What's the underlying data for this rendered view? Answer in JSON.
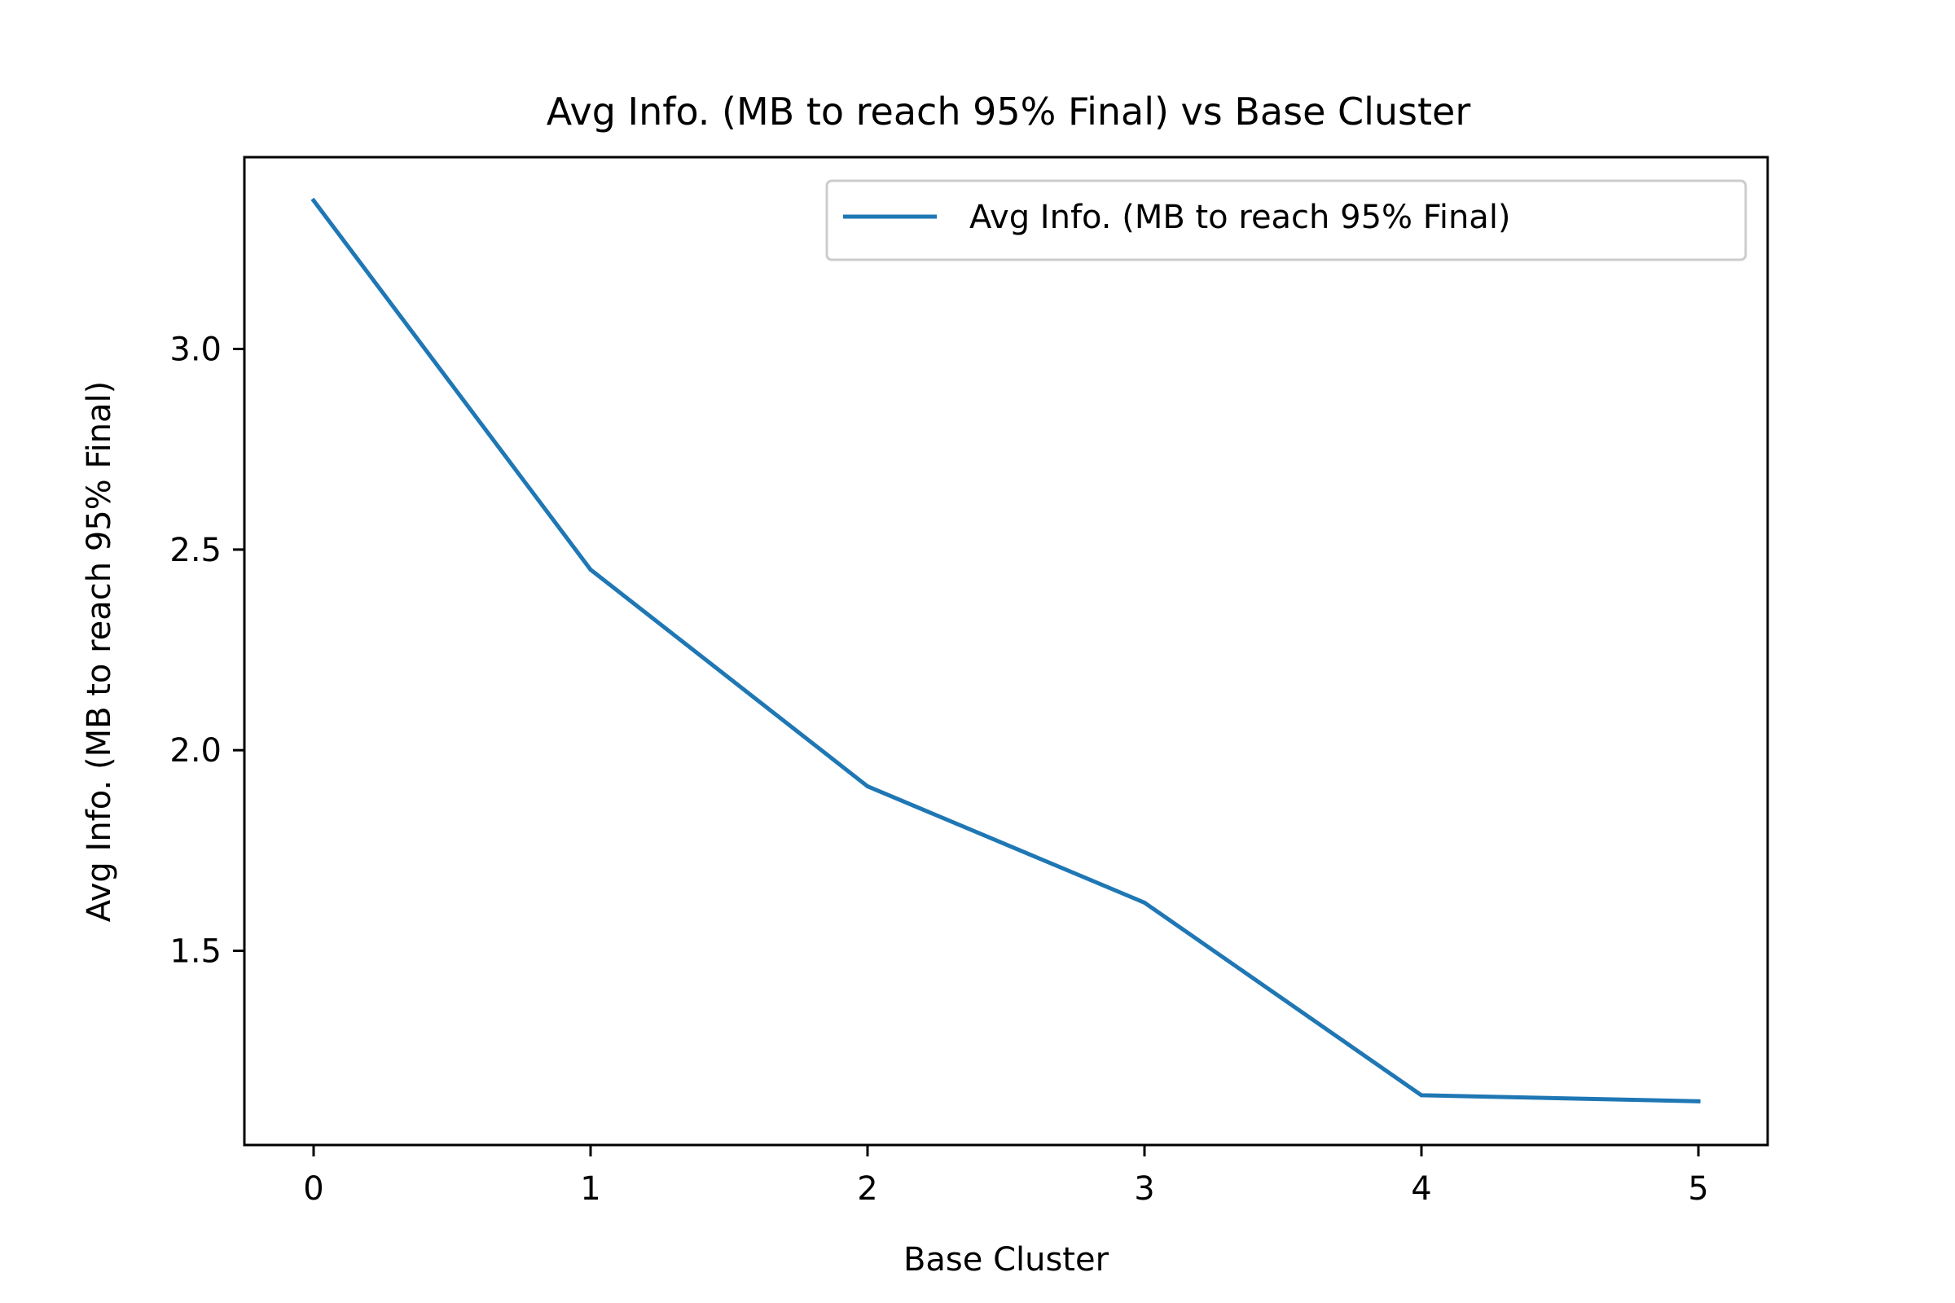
{
  "chart_data": {
    "type": "line",
    "title": "Avg Info. (MB to reach 95% Final) vs Base Cluster",
    "xlabel": "Base Cluster",
    "ylabel": "Avg Info. (MB to reach 95% Final)",
    "x": [
      0,
      1,
      2,
      3,
      4,
      5
    ],
    "xticks": [
      0,
      1,
      2,
      3,
      4,
      5
    ],
    "xlim": [
      -0.25,
      5.25
    ],
    "ylim": [
      1.016,
      3.478
    ],
    "yticks": [
      1.5,
      2.0,
      2.5,
      3.0
    ],
    "ytick_labels": [
      "1.5",
      "2.0",
      "2.5",
      "3.0"
    ],
    "series": [
      {
        "name": "Avg Info. (MB to reach 95% Final)",
        "values": [
          3.37,
          2.45,
          1.91,
          1.62,
          1.14,
          1.125
        ],
        "color": "#1f77b4"
      }
    ],
    "legend": {
      "position": "upper right",
      "entries": [
        "Avg Info. (MB to reach 95% Final)"
      ]
    },
    "grid": false
  }
}
